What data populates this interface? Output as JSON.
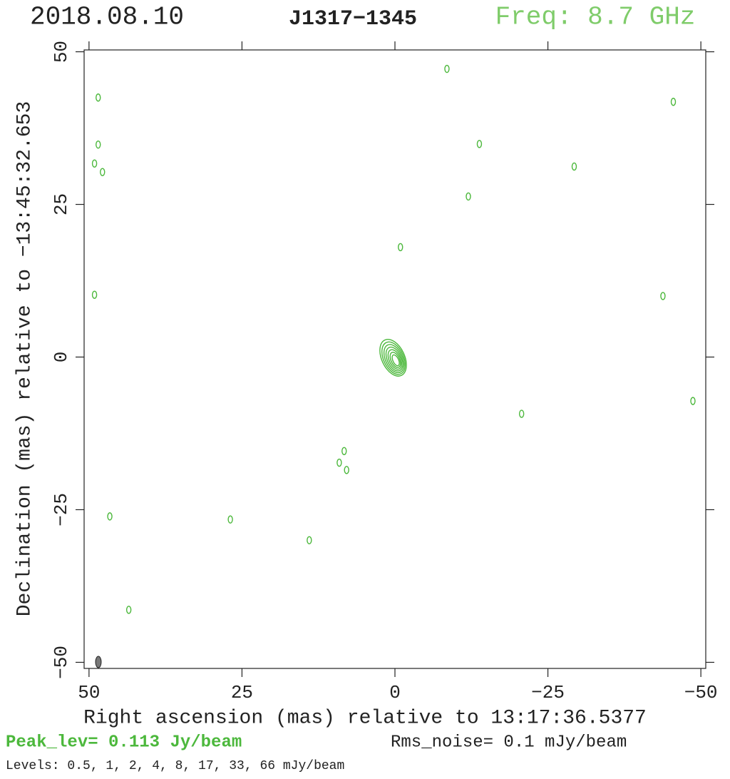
{
  "chart_data": {
    "type": "contour",
    "date": "2018.08.10",
    "title": "J1317−1345",
    "frequency": "Freq: 8.7 GHz",
    "xlabel": "Right ascension (mas) relative to 13:17:36.5377",
    "ylabel": "Declination (mas) relative to −13:45:32.653",
    "peak": "Peak_lev=  0.113 Jy/beam",
    "noise": "Rms_noise=  0.1 mJy/beam",
    "levels": "Levels: 0.5,    1,    2,    4,    8,   17,   33,   66  mJy/beam",
    "color": "#4cb83c",
    "xlim": [
      50.8,
      -50.8
    ],
    "ylim": [
      -51,
      50.3
    ],
    "xticks": [
      50,
      25,
      0,
      {
        "value": -25,
        "label": "−25"
      },
      {
        "value": -50,
        "label": "−50"
      }
    ],
    "yticks": [
      50,
      25,
      0,
      {
        "value": -25,
        "label": "−25"
      },
      {
        "value": -50,
        "label": "−50"
      }
    ],
    "x": [
      -0.2,
      48.5,
      48.5,
      49.1,
      47.8,
      -8.5,
      -45.5,
      -13.8,
      -29.3,
      -12,
      -0.9,
      49.1,
      -43.8,
      -48.7,
      -20.7,
      8.3,
      9.1,
      7.9,
      46.6,
      26.9,
      14,
      43.5
    ],
    "y": [
      -0.6,
      42.5,
      34.8,
      31.7,
      30.3,
      47.2,
      41.8,
      34.9,
      31.2,
      26.3,
      18,
      10.2,
      10,
      -7.2,
      -9.3,
      -15.4,
      -17.3,
      -18.5,
      -26.1,
      -26.6,
      -30,
      -41.4
    ]
  }
}
